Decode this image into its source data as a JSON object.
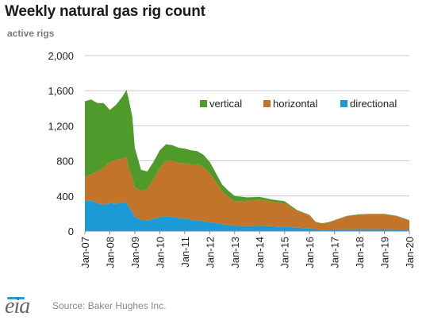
{
  "header": {
    "title": "Weekly natural gas rig count",
    "subtitle": "active rigs"
  },
  "footer": {
    "logo_text": "eia",
    "source": "Source: Baker Hughes Inc."
  },
  "colors": {
    "vertical": "#4e9a2a",
    "horizontal": "#c2742b",
    "directional": "#1b9ad6",
    "grid": "#c8c8c8",
    "axis": "#888888"
  },
  "chart_data": {
    "type": "area",
    "stacked": true,
    "ylim": [
      0,
      2000
    ],
    "y_ticks": [
      "0",
      "400",
      "800",
      "1,200",
      "1,600",
      "2,000"
    ],
    "y_tick_values": [
      0,
      400,
      800,
      1200,
      1600,
      2000
    ],
    "x_tick_labels": [
      "Jan-07",
      "Jan-08",
      "Jan-09",
      "Jan-10",
      "Jan-11",
      "Jan-12",
      "Jan-13",
      "Jan-14",
      "Jan-15",
      "Jan-16",
      "Jan-17",
      "Jan-18",
      "Jan-19",
      "Jan-20"
    ],
    "xlim": [
      2007.0,
      2020.0
    ],
    "grid": "horizontal",
    "legend_position": "top-right",
    "x": [
      2007.0,
      2007.25,
      2007.5,
      2007.75,
      2008.0,
      2008.25,
      2008.5,
      2008.67,
      2008.75,
      2008.9,
      2009.0,
      2009.25,
      2009.5,
      2009.75,
      2010.0,
      2010.25,
      2010.5,
      2010.75,
      2011.0,
      2011.25,
      2011.5,
      2011.75,
      2012.0,
      2012.25,
      2012.5,
      2012.75,
      2013.0,
      2013.5,
      2014.0,
      2014.5,
      2015.0,
      2015.5,
      2016.0,
      2016.25,
      2016.5,
      2016.75,
      2017.0,
      2017.5,
      2018.0,
      2018.5,
      2019.0,
      2019.5,
      2020.0
    ],
    "series": [
      {
        "name": "directional",
        "values": [
          340,
          350,
          320,
          300,
          320,
          310,
          330,
          320,
          280,
          220,
          160,
          130,
          120,
          140,
          160,
          170,
          160,
          150,
          140,
          130,
          120,
          110,
          100,
          90,
          80,
          70,
          60,
          55,
          60,
          55,
          50,
          40,
          30,
          20,
          15,
          15,
          20,
          20,
          22,
          22,
          22,
          20,
          15
        ]
      },
      {
        "name": "horizontal",
        "values": [
          270,
          300,
          360,
          420,
          470,
          500,
          500,
          520,
          450,
          380,
          340,
          330,
          360,
          450,
          560,
          630,
          640,
          630,
          630,
          630,
          640,
          620,
          560,
          470,
          370,
          320,
          280,
          290,
          300,
          280,
          270,
          190,
          150,
          80,
          70,
          80,
          100,
          150,
          165,
          170,
          170,
          150,
          105
        ]
      },
      {
        "name": "vertical",
        "values": [
          870,
          850,
          780,
          740,
          590,
          630,
          700,
          770,
          780,
          700,
          450,
          240,
          200,
          200,
          200,
          190,
          180,
          170,
          170,
          160,
          150,
          140,
          130,
          100,
          80,
          70,
          60,
          40,
          30,
          25,
          20,
          10,
          5,
          5,
          5,
          5,
          5,
          5,
          5,
          5,
          5,
          5,
          5
        ]
      }
    ]
  }
}
